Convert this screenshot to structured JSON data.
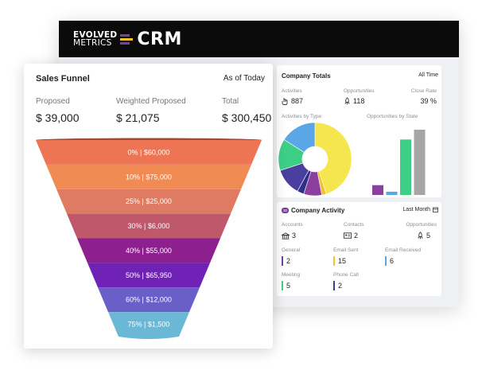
{
  "crm": {
    "logo_line1": "EVOLVED",
    "logo_line2": "METRICS",
    "logo_colors": [
      "#7b3fa0",
      "#f2c12e",
      "#7b3fa0"
    ],
    "title": "CRM"
  },
  "company_totals": {
    "title": "Company Totals",
    "range": "All Time",
    "activities_label": "Activities",
    "activities_value": "887",
    "activities_icon": "hand-pointer-icon",
    "opportunities_label": "Opportunities",
    "opportunities_value": "118",
    "opportunities_icon": "rocket-icon",
    "close_rate_label": "Close Rate",
    "close_rate_value": "39 %",
    "activities_by_type_label": "Activities by Type",
    "opportunities_by_state_label": "Opportunities by State"
  },
  "company_activity": {
    "badge": "30",
    "title": "Company Activity",
    "range": "Last Month",
    "range_icon": "calendar-icon",
    "accounts_label": "Accounts",
    "accounts_value": "3",
    "accounts_icon": "building-icon",
    "contacts_label": "Contacts",
    "contacts_value": "2",
    "contacts_icon": "id-card-icon",
    "opportunities_label": "Opportunities",
    "opportunities_value": "5",
    "opportunities_icon": "rocket-icon",
    "items": [
      {
        "label": "General",
        "value": "2",
        "color": "#7b3fa0"
      },
      {
        "label": "Email Sent",
        "value": "15",
        "color": "#f2c12e"
      },
      {
        "label": "Email Received",
        "value": "6",
        "color": "#5aa6e6"
      },
      {
        "label": "Meeting",
        "value": "5",
        "color": "#3ecf86"
      },
      {
        "label": "Phone Call",
        "value": "2",
        "color": "#3a3f9a"
      }
    ]
  },
  "sales_funnel": {
    "title": "Sales Funnel",
    "as_of": "As of Today",
    "proposed_label": "Proposed",
    "proposed_value": "$ 39,000",
    "weighted_label": "Weighted Proposed",
    "weighted_value": "$ 21,075",
    "total_label": "Total",
    "total_value": "$ 300,450"
  },
  "chart_data": [
    {
      "type": "pie",
      "title": "Activities by Type",
      "style": "donut",
      "slices": [
        {
          "value": 45,
          "color": "#f5e64f"
        },
        {
          "value": 2,
          "color": "#f2c12e"
        },
        {
          "value": 8,
          "color": "#8b3f9e"
        },
        {
          "value": 3,
          "color": "#2e2f8a"
        },
        {
          "value": 12,
          "color": "#4a3f9e"
        },
        {
          "value": 14,
          "color": "#3ecf86"
        },
        {
          "value": 16,
          "color": "#5aa6e6"
        }
      ]
    },
    {
      "type": "bar",
      "title": "Opportunities by State",
      "ylim": [
        0,
        80
      ],
      "values": [
        12,
        4,
        68,
        80
      ],
      "colors": [
        "#8b3f9e",
        "#5aa6e6",
        "#3ecf86",
        "#a6a6a6"
      ]
    },
    {
      "type": "bar",
      "title": "Sales Funnel",
      "style": "funnel",
      "labels": [
        "0% | $60,000",
        "10% | $75,000",
        "25% | $25,000",
        "30% | $6,000",
        "40% | $55,000",
        "50% | $65,950",
        "60% | $12,000",
        "75% | $1,500"
      ],
      "percent": [
        0,
        10,
        25,
        30,
        40,
        50,
        60,
        75
      ],
      "amounts": [
        60000,
        75000,
        25000,
        6000,
        55000,
        65950,
        12000,
        1500
      ],
      "colors": [
        "#ee7553",
        "#f08b54",
        "#df7b62",
        "#c0586b",
        "#8e1f8f",
        "#6f22b5",
        "#6a5ec8",
        "#6ab8d6"
      ]
    }
  ]
}
